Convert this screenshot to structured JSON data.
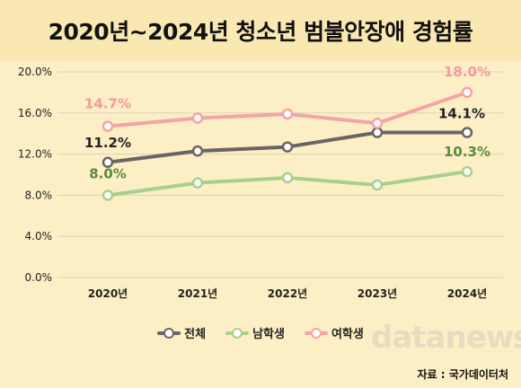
{
  "chart_data": {
    "type": "line",
    "title": "2020년~2024년 청소년 범불안장애 경험률",
    "categories": [
      "2020년",
      "2021년",
      "2022년",
      "2023년",
      "2024년"
    ],
    "ylim": [
      0,
      20
    ],
    "yticks": [
      "0.0%",
      "4.0%",
      "8.0%",
      "12.0%",
      "16.0%",
      "20.0%"
    ],
    "ytick_values": [
      0,
      4,
      8,
      12,
      16,
      20
    ],
    "grid": true,
    "legend_position": "bottom",
    "series": [
      {
        "name": "전체",
        "color": "#6b6464",
        "values": [
          11.2,
          12.3,
          12.7,
          14.1,
          14.1
        ]
      },
      {
        "name": "남학생",
        "color": "#a8d08d",
        "values": [
          8.0,
          9.2,
          9.7,
          9.0,
          10.3
        ]
      },
      {
        "name": "여학생",
        "color": "#f4a3a6",
        "values": [
          14.7,
          15.5,
          15.9,
          15.0,
          18.0
        ]
      }
    ],
    "annotations": [
      {
        "series": 2,
        "point": 0,
        "text": "14.7%",
        "color": "#f4999c"
      },
      {
        "series": 2,
        "point": 4,
        "text": "18.0%",
        "color": "#f4999c"
      },
      {
        "series": 0,
        "point": 0,
        "text": "11.2%",
        "color": "#222222"
      },
      {
        "series": 0,
        "point": 4,
        "text": "14.1%",
        "color": "#222222"
      },
      {
        "series": 1,
        "point": 0,
        "text": "8.0%",
        "color": "#5a8c3a"
      },
      {
        "series": 1,
        "point": 4,
        "text": "10.3%",
        "color": "#5a8c3a"
      }
    ]
  },
  "watermark": "datanews",
  "source": "자료 : 국가데이터처"
}
